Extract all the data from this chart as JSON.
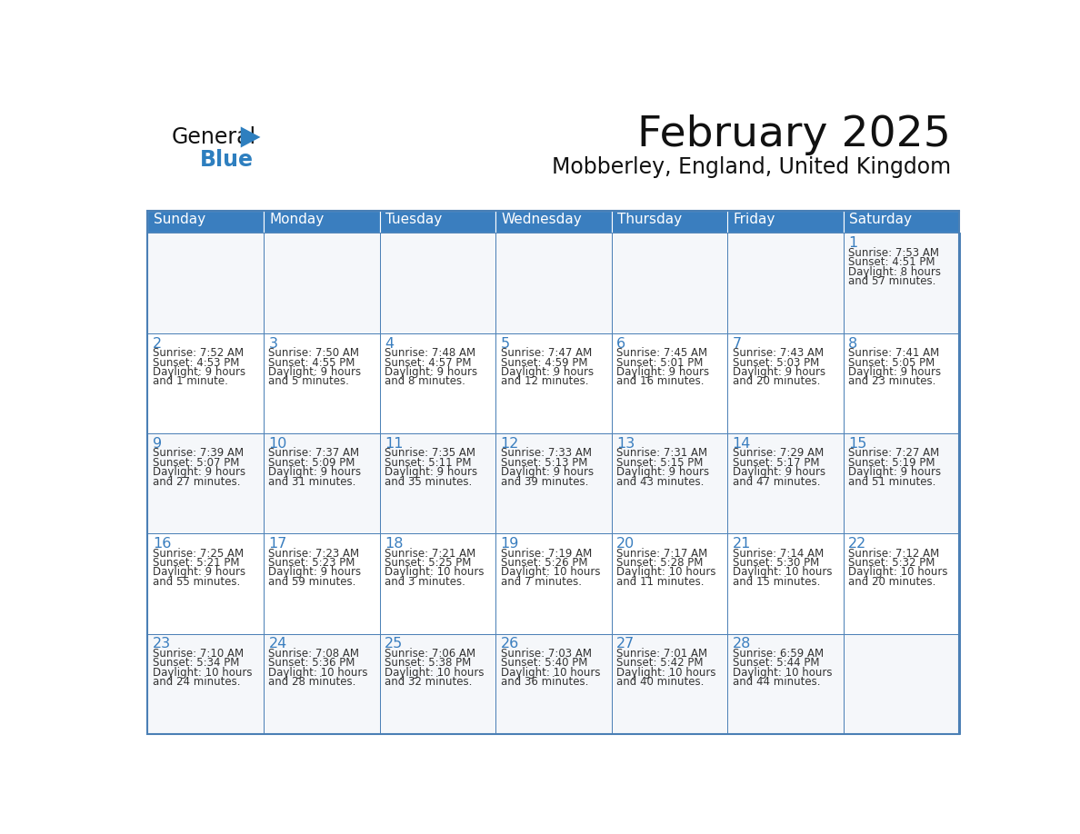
{
  "title": "February 2025",
  "subtitle": "Mobberley, England, United Kingdom",
  "header_bg": "#3a7ebf",
  "header_text_color": "#FFFFFF",
  "cell_bg": "#FFFFFF",
  "cell_bg_alt": "#f0f4f8",
  "cell_border_color": "#4a7fb5",
  "day_number_color": "#3a7ebf",
  "cell_text_color": "#333333",
  "days_of_week": [
    "Sunday",
    "Monday",
    "Tuesday",
    "Wednesday",
    "Thursday",
    "Friday",
    "Saturday"
  ],
  "title_color": "#111111",
  "subtitle_color": "#111111",
  "logo_triangle_color": "#2E7FBF",
  "calendar": [
    [
      null,
      null,
      null,
      null,
      null,
      null,
      {
        "day": 1,
        "sunrise": "7:53 AM",
        "sunset": "4:51 PM",
        "daylight": "8 hours",
        "daylight2": "and 57 minutes."
      }
    ],
    [
      {
        "day": 2,
        "sunrise": "7:52 AM",
        "sunset": "4:53 PM",
        "daylight": "9 hours",
        "daylight2": "and 1 minute."
      },
      {
        "day": 3,
        "sunrise": "7:50 AM",
        "sunset": "4:55 PM",
        "daylight": "9 hours",
        "daylight2": "and 5 minutes."
      },
      {
        "day": 4,
        "sunrise": "7:48 AM",
        "sunset": "4:57 PM",
        "daylight": "9 hours",
        "daylight2": "and 8 minutes."
      },
      {
        "day": 5,
        "sunrise": "7:47 AM",
        "sunset": "4:59 PM",
        "daylight": "9 hours",
        "daylight2": "and 12 minutes."
      },
      {
        "day": 6,
        "sunrise": "7:45 AM",
        "sunset": "5:01 PM",
        "daylight": "9 hours",
        "daylight2": "and 16 minutes."
      },
      {
        "day": 7,
        "sunrise": "7:43 AM",
        "sunset": "5:03 PM",
        "daylight": "9 hours",
        "daylight2": "and 20 minutes."
      },
      {
        "day": 8,
        "sunrise": "7:41 AM",
        "sunset": "5:05 PM",
        "daylight": "9 hours",
        "daylight2": "and 23 minutes."
      }
    ],
    [
      {
        "day": 9,
        "sunrise": "7:39 AM",
        "sunset": "5:07 PM",
        "daylight": "9 hours",
        "daylight2": "and 27 minutes."
      },
      {
        "day": 10,
        "sunrise": "7:37 AM",
        "sunset": "5:09 PM",
        "daylight": "9 hours",
        "daylight2": "and 31 minutes."
      },
      {
        "day": 11,
        "sunrise": "7:35 AM",
        "sunset": "5:11 PM",
        "daylight": "9 hours",
        "daylight2": "and 35 minutes."
      },
      {
        "day": 12,
        "sunrise": "7:33 AM",
        "sunset": "5:13 PM",
        "daylight": "9 hours",
        "daylight2": "and 39 minutes."
      },
      {
        "day": 13,
        "sunrise": "7:31 AM",
        "sunset": "5:15 PM",
        "daylight": "9 hours",
        "daylight2": "and 43 minutes."
      },
      {
        "day": 14,
        "sunrise": "7:29 AM",
        "sunset": "5:17 PM",
        "daylight": "9 hours",
        "daylight2": "and 47 minutes."
      },
      {
        "day": 15,
        "sunrise": "7:27 AM",
        "sunset": "5:19 PM",
        "daylight": "9 hours",
        "daylight2": "and 51 minutes."
      }
    ],
    [
      {
        "day": 16,
        "sunrise": "7:25 AM",
        "sunset": "5:21 PM",
        "daylight": "9 hours",
        "daylight2": "and 55 minutes."
      },
      {
        "day": 17,
        "sunrise": "7:23 AM",
        "sunset": "5:23 PM",
        "daylight": "9 hours",
        "daylight2": "and 59 minutes."
      },
      {
        "day": 18,
        "sunrise": "7:21 AM",
        "sunset": "5:25 PM",
        "daylight": "10 hours",
        "daylight2": "and 3 minutes."
      },
      {
        "day": 19,
        "sunrise": "7:19 AM",
        "sunset": "5:26 PM",
        "daylight": "10 hours",
        "daylight2": "and 7 minutes."
      },
      {
        "day": 20,
        "sunrise": "7:17 AM",
        "sunset": "5:28 PM",
        "daylight": "10 hours",
        "daylight2": "and 11 minutes."
      },
      {
        "day": 21,
        "sunrise": "7:14 AM",
        "sunset": "5:30 PM",
        "daylight": "10 hours",
        "daylight2": "and 15 minutes."
      },
      {
        "day": 22,
        "sunrise": "7:12 AM",
        "sunset": "5:32 PM",
        "daylight": "10 hours",
        "daylight2": "and 20 minutes."
      }
    ],
    [
      {
        "day": 23,
        "sunrise": "7:10 AM",
        "sunset": "5:34 PM",
        "daylight": "10 hours",
        "daylight2": "and 24 minutes."
      },
      {
        "day": 24,
        "sunrise": "7:08 AM",
        "sunset": "5:36 PM",
        "daylight": "10 hours",
        "daylight2": "and 28 minutes."
      },
      {
        "day": 25,
        "sunrise": "7:06 AM",
        "sunset": "5:38 PM",
        "daylight": "10 hours",
        "daylight2": "and 32 minutes."
      },
      {
        "day": 26,
        "sunrise": "7:03 AM",
        "sunset": "5:40 PM",
        "daylight": "10 hours",
        "daylight2": "and 36 minutes."
      },
      {
        "day": 27,
        "sunrise": "7:01 AM",
        "sunset": "5:42 PM",
        "daylight": "10 hours",
        "daylight2": "and 40 minutes."
      },
      {
        "day": 28,
        "sunrise": "6:59 AM",
        "sunset": "5:44 PM",
        "daylight": "10 hours",
        "daylight2": "and 44 minutes."
      },
      null
    ]
  ]
}
